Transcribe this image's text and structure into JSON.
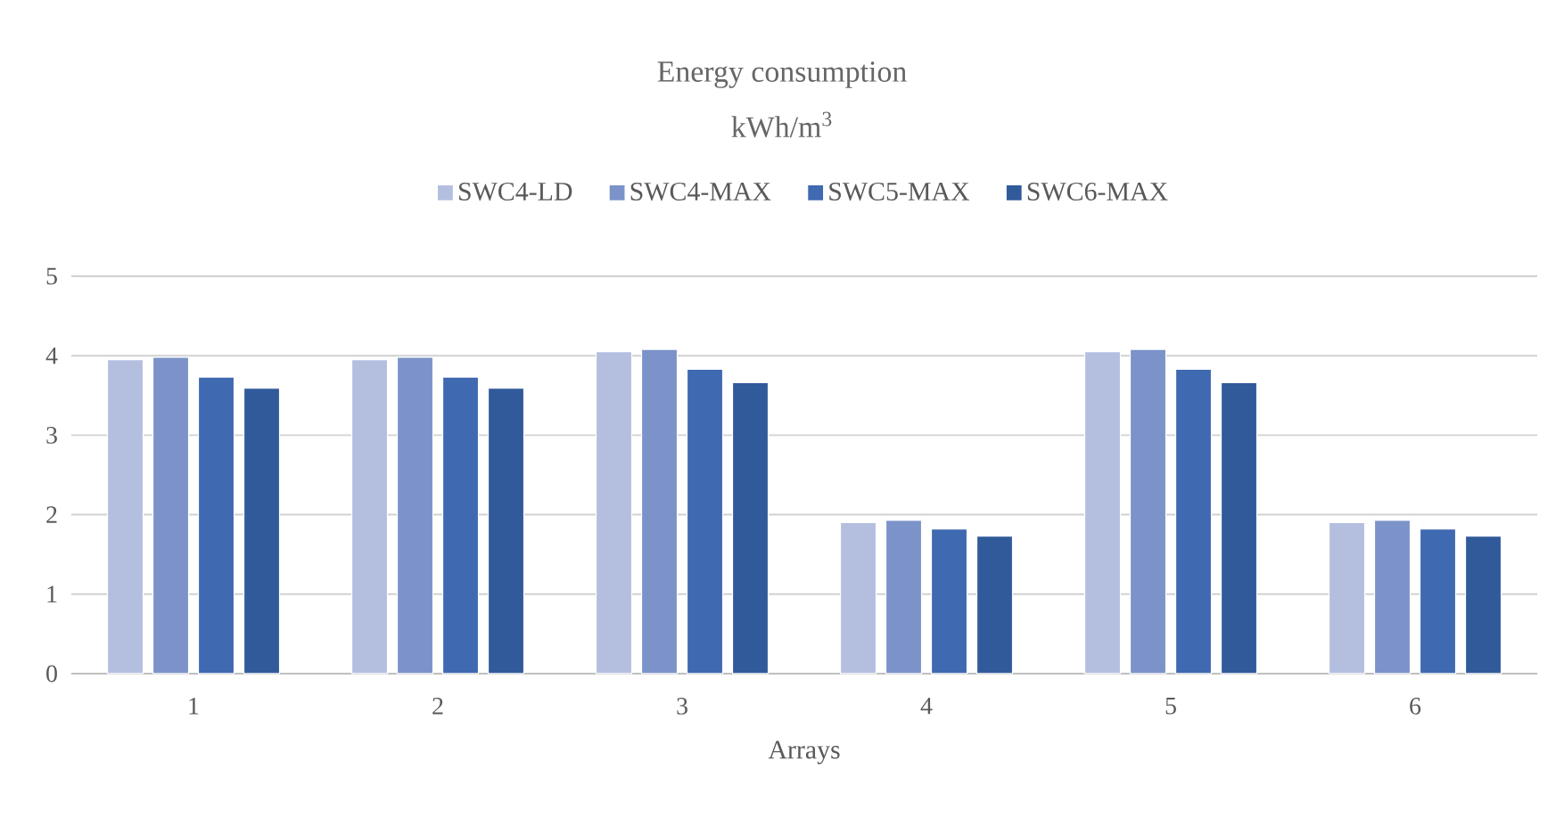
{
  "chart_data": {
    "type": "bar",
    "title": "Energy consumption",
    "subtitle": "kWh/m$^{3}$",
    "xlabel": "Arrays",
    "categories": [
      "1",
      "2",
      "3",
      "4",
      "5",
      "6"
    ],
    "series": [
      {
        "name": "SWC4-LD",
        "color": "#b4bfe0",
        "values": [
          3.95,
          3.95,
          4.05,
          1.9,
          4.05,
          1.9
        ]
      },
      {
        "name": "SWC4-MAX",
        "color": "#7b93c9",
        "values": [
          3.98,
          3.98,
          4.08,
          1.93,
          4.08,
          1.93
        ]
      },
      {
        "name": "SWC5-MAX",
        "color": "#3f69b0",
        "values": [
          3.73,
          3.73,
          3.83,
          1.82,
          3.83,
          1.82
        ]
      },
      {
        "name": "SWC6-MAX",
        "color": "#315a9a",
        "values": [
          3.59,
          3.59,
          3.66,
          1.73,
          3.66,
          1.73
        ]
      }
    ],
    "ylim": [
      0,
      5
    ],
    "yticks": [
      0,
      1,
      2,
      3,
      4,
      5
    ],
    "grid": "y",
    "legend": "top"
  }
}
